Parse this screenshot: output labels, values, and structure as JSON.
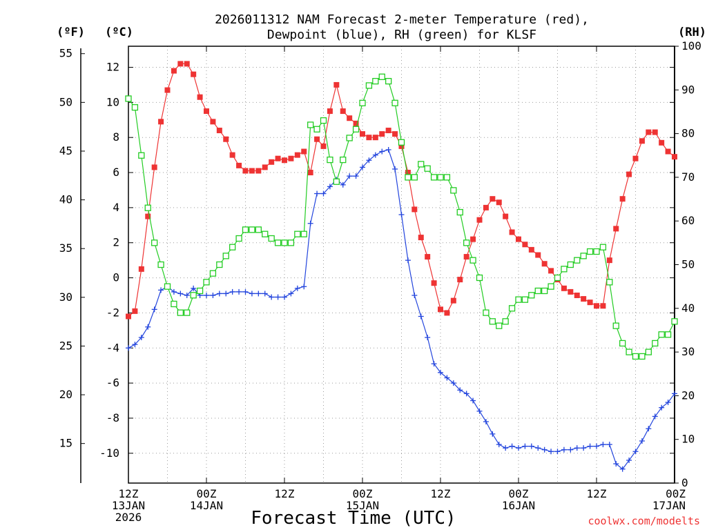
{
  "chart_data": {
    "type": "line",
    "title_line1": "2026011312 NAM Forecast 2-meter Temperature (red),",
    "title_line2": "Dewpoint (blue), RH (green) for KLSF",
    "xlabel": "Forecast Time (UTC)",
    "credit": "coolwx.com/modelts",
    "unit_f": "(ºF)",
    "unit_c": "(ºC)",
    "unit_rh": "(RH)",
    "x_hours_range": [
      0,
      84
    ],
    "x_ticks": [
      {
        "hour": 0,
        "lines": [
          "12Z",
          "13JAN",
          "2026"
        ]
      },
      {
        "hour": 12,
        "lines": [
          "00Z",
          "14JAN"
        ]
      },
      {
        "hour": 24,
        "lines": [
          "12Z"
        ]
      },
      {
        "hour": 36,
        "lines": [
          "00Z",
          "15JAN"
        ]
      },
      {
        "hour": 48,
        "lines": [
          "12Z"
        ]
      },
      {
        "hour": 60,
        "lines": [
          "00Z",
          "16JAN"
        ]
      },
      {
        "hour": 72,
        "lines": [
          "12Z"
        ]
      },
      {
        "hour": 84,
        "lines": [
          "00Z",
          "17JAN"
        ]
      }
    ],
    "y_celsius": {
      "range": [
        -11.7,
        13.2
      ],
      "ticks": [
        12,
        10,
        8,
        6,
        4,
        2,
        0,
        -2,
        -4,
        -6,
        -8,
        -10
      ]
    },
    "y_fahrenheit": {
      "ticks": [
        55,
        50,
        45,
        40,
        35,
        30,
        25,
        20,
        15
      ]
    },
    "y_rh": {
      "range": [
        0,
        100
      ],
      "ticks": [
        100,
        90,
        80,
        70,
        60,
        50,
        40,
        30,
        20,
        10,
        0
      ]
    },
    "grid": true,
    "series": [
      {
        "name": "Temperature",
        "color": "#ee3333",
        "marker": "filled-square",
        "axis": "celsius",
        "values": [
          [
            0,
            -2.2
          ],
          [
            1,
            -1.9
          ],
          [
            2,
            0.5
          ],
          [
            3,
            3.5
          ],
          [
            4,
            6.3
          ],
          [
            5,
            8.9
          ],
          [
            6,
            10.7
          ],
          [
            7,
            11.8
          ],
          [
            8,
            12.2
          ],
          [
            9,
            12.2
          ],
          [
            10,
            11.6
          ],
          [
            11,
            10.3
          ],
          [
            12,
            9.5
          ],
          [
            13,
            8.9
          ],
          [
            14,
            8.4
          ],
          [
            15,
            7.9
          ],
          [
            16,
            7.0
          ],
          [
            17,
            6.4
          ],
          [
            18,
            6.1
          ],
          [
            19,
            6.1
          ],
          [
            20,
            6.1
          ],
          [
            21,
            6.3
          ],
          [
            22,
            6.6
          ],
          [
            23,
            6.8
          ],
          [
            24,
            6.7
          ],
          [
            25,
            6.8
          ],
          [
            26,
            7.0
          ],
          [
            27,
            7.2
          ],
          [
            28,
            6.0
          ],
          [
            29,
            7.9
          ],
          [
            30,
            7.5
          ],
          [
            31,
            9.5
          ],
          [
            32,
            11.0
          ],
          [
            33,
            9.5
          ],
          [
            34,
            9.1
          ],
          [
            35,
            8.8
          ],
          [
            36,
            8.2
          ],
          [
            37,
            8.0
          ],
          [
            38,
            8.0
          ],
          [
            39,
            8.2
          ],
          [
            40,
            8.4
          ],
          [
            41,
            8.2
          ],
          [
            42,
            7.5
          ],
          [
            43,
            6.0
          ],
          [
            44,
            3.9
          ],
          [
            45,
            2.3
          ],
          [
            46,
            1.2
          ],
          [
            47,
            -0.3
          ],
          [
            48,
            -1.8
          ],
          [
            49,
            -2.0
          ],
          [
            50,
            -1.3
          ],
          [
            51,
            -0.1
          ],
          [
            52,
            1.2
          ],
          [
            53,
            2.2
          ],
          [
            54,
            3.3
          ],
          [
            55,
            4.0
          ],
          [
            56,
            4.5
          ],
          [
            57,
            4.3
          ],
          [
            58,
            3.5
          ],
          [
            59,
            2.6
          ],
          [
            60,
            2.2
          ],
          [
            61,
            1.9
          ],
          [
            62,
            1.6
          ],
          [
            63,
            1.3
          ],
          [
            64,
            0.8
          ],
          [
            65,
            0.4
          ],
          [
            66,
            -0.1
          ],
          [
            67,
            -0.6
          ],
          [
            68,
            -0.8
          ],
          [
            69,
            -1.0
          ],
          [
            70,
            -1.2
          ],
          [
            71,
            -1.4
          ],
          [
            72,
            -1.6
          ],
          [
            73,
            -1.6
          ],
          [
            74,
            1.0
          ],
          [
            75,
            2.8
          ],
          [
            76,
            4.5
          ],
          [
            77,
            5.9
          ],
          [
            78,
            6.8
          ],
          [
            79,
            7.8
          ],
          [
            80,
            8.3
          ],
          [
            81,
            8.3
          ],
          [
            82,
            7.7
          ],
          [
            83,
            7.2
          ],
          [
            84,
            6.9
          ]
        ]
      },
      {
        "name": "Dewpoint",
        "color": "#2244dd",
        "marker": "plus",
        "axis": "celsius",
        "values": [
          [
            0,
            -4.0
          ],
          [
            1,
            -3.8
          ],
          [
            2,
            -3.4
          ],
          [
            3,
            -2.8
          ],
          [
            4,
            -1.8
          ],
          [
            5,
            -0.7
          ],
          [
            6,
            -0.5
          ],
          [
            7,
            -0.8
          ],
          [
            8,
            -0.9
          ],
          [
            9,
            -1.0
          ],
          [
            10,
            -0.6
          ],
          [
            11,
            -1.0
          ],
          [
            12,
            -1.0
          ],
          [
            13,
            -1.0
          ],
          [
            14,
            -0.9
          ],
          [
            15,
            -0.9
          ],
          [
            16,
            -0.8
          ],
          [
            17,
            -0.8
          ],
          [
            18,
            -0.8
          ],
          [
            19,
            -0.9
          ],
          [
            20,
            -0.9
          ],
          [
            21,
            -0.9
          ],
          [
            22,
            -1.1
          ],
          [
            23,
            -1.1
          ],
          [
            24,
            -1.1
          ],
          [
            25,
            -0.9
          ],
          [
            26,
            -0.6
          ],
          [
            27,
            -0.5
          ],
          [
            28,
            3.1
          ],
          [
            29,
            4.8
          ],
          [
            30,
            4.8
          ],
          [
            31,
            5.2
          ],
          [
            32,
            5.6
          ],
          [
            33,
            5.3
          ],
          [
            34,
            5.8
          ],
          [
            35,
            5.8
          ],
          [
            36,
            6.3
          ],
          [
            37,
            6.7
          ],
          [
            38,
            7.0
          ],
          [
            39,
            7.2
          ],
          [
            40,
            7.3
          ],
          [
            41,
            6.2
          ],
          [
            42,
            3.6
          ],
          [
            43,
            1.0
          ],
          [
            44,
            -1.0
          ],
          [
            45,
            -2.2
          ],
          [
            46,
            -3.4
          ],
          [
            47,
            -4.9
          ],
          [
            48,
            -5.4
          ],
          [
            49,
            -5.7
          ],
          [
            50,
            -6.0
          ],
          [
            51,
            -6.4
          ],
          [
            52,
            -6.6
          ],
          [
            53,
            -7.0
          ],
          [
            54,
            -7.6
          ],
          [
            55,
            -8.2
          ],
          [
            56,
            -8.9
          ],
          [
            57,
            -9.5
          ],
          [
            58,
            -9.7
          ],
          [
            59,
            -9.6
          ],
          [
            60,
            -9.7
          ],
          [
            61,
            -9.6
          ],
          [
            62,
            -9.6
          ],
          [
            63,
            -9.7
          ],
          [
            64,
            -9.8
          ],
          [
            65,
            -9.9
          ],
          [
            66,
            -9.9
          ],
          [
            67,
            -9.8
          ],
          [
            68,
            -9.8
          ],
          [
            69,
            -9.7
          ],
          [
            70,
            -9.7
          ],
          [
            71,
            -9.6
          ],
          [
            72,
            -9.6
          ],
          [
            73,
            -9.5
          ],
          [
            74,
            -9.5
          ],
          [
            75,
            -10.6
          ],
          [
            76,
            -10.9
          ],
          [
            77,
            -10.4
          ],
          [
            78,
            -9.9
          ],
          [
            79,
            -9.3
          ],
          [
            80,
            -8.6
          ],
          [
            81,
            -7.9
          ],
          [
            82,
            -7.4
          ],
          [
            83,
            -7.1
          ],
          [
            84,
            -6.6
          ]
        ]
      },
      {
        "name": "RH",
        "color": "#22cc22",
        "marker": "open-square",
        "axis": "rh",
        "values": [
          [
            0,
            88
          ],
          [
            1,
            86
          ],
          [
            2,
            75
          ],
          [
            3,
            63
          ],
          [
            4,
            55
          ],
          [
            5,
            50
          ],
          [
            6,
            45
          ],
          [
            7,
            41
          ],
          [
            8,
            39
          ],
          [
            9,
            39
          ],
          [
            10,
            43
          ],
          [
            11,
            44
          ],
          [
            12,
            46
          ],
          [
            13,
            48
          ],
          [
            14,
            50
          ],
          [
            15,
            52
          ],
          [
            16,
            54
          ],
          [
            17,
            56
          ],
          [
            18,
            58
          ],
          [
            19,
            58
          ],
          [
            20,
            58
          ],
          [
            21,
            57
          ],
          [
            22,
            56
          ],
          [
            23,
            55
          ],
          [
            24,
            55
          ],
          [
            25,
            55
          ],
          [
            26,
            57
          ],
          [
            27,
            57
          ],
          [
            28,
            82
          ],
          [
            29,
            81
          ],
          [
            30,
            83
          ],
          [
            31,
            74
          ],
          [
            32,
            69
          ],
          [
            33,
            74
          ],
          [
            34,
            79
          ],
          [
            35,
            81
          ],
          [
            36,
            87
          ],
          [
            37,
            91
          ],
          [
            38,
            92
          ],
          [
            39,
            93
          ],
          [
            40,
            92
          ],
          [
            41,
            87
          ],
          [
            42,
            78
          ],
          [
            43,
            70
          ],
          [
            44,
            70
          ],
          [
            45,
            73
          ],
          [
            46,
            72
          ],
          [
            47,
            70
          ],
          [
            48,
            70
          ],
          [
            49,
            70
          ],
          [
            50,
            67
          ],
          [
            51,
            62
          ],
          [
            52,
            55
          ],
          [
            53,
            51
          ],
          [
            54,
            47
          ],
          [
            55,
            39
          ],
          [
            56,
            37
          ],
          [
            57,
            36
          ],
          [
            58,
            37
          ],
          [
            59,
            40
          ],
          [
            60,
            42
          ],
          [
            61,
            42
          ],
          [
            62,
            43
          ],
          [
            63,
            44
          ],
          [
            64,
            44
          ],
          [
            65,
            45
          ],
          [
            66,
            47
          ],
          [
            67,
            49
          ],
          [
            68,
            50
          ],
          [
            69,
            51
          ],
          [
            70,
            52
          ],
          [
            71,
            53
          ],
          [
            72,
            53
          ],
          [
            73,
            54
          ],
          [
            74,
            46
          ],
          [
            75,
            36
          ],
          [
            76,
            32
          ],
          [
            77,
            30
          ],
          [
            78,
            29
          ],
          [
            79,
            29
          ],
          [
            80,
            30
          ],
          [
            81,
            32
          ],
          [
            82,
            34
          ],
          [
            83,
            34
          ],
          [
            84,
            37
          ]
        ]
      }
    ]
  }
}
